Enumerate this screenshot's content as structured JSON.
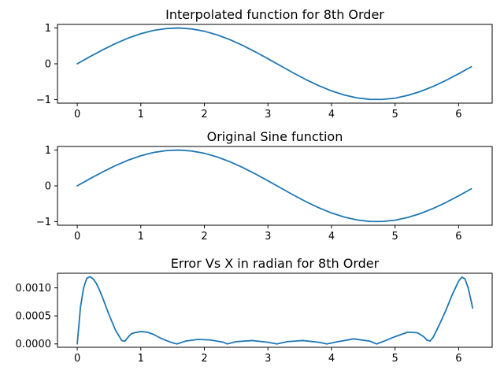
{
  "chart_data": [
    {
      "type": "line",
      "title": "Interpolated function for 8th Order",
      "xlim": [
        -0.311,
        6.528
      ],
      "ylim": [
        -1.1,
        1.1
      ],
      "xticks": [
        0,
        1,
        2,
        3,
        4,
        5,
        6
      ],
      "xtick_labels": [
        "0",
        "1",
        "2",
        "3",
        "4",
        "5",
        "6"
      ],
      "yticks": [
        -1,
        0,
        1
      ],
      "ytick_labels": [
        "−1",
        "0",
        "1"
      ],
      "series": [
        {
          "color": "#1f77b4",
          "x": [
            0,
            0.2,
            0.4,
            0.6,
            0.8,
            1.0,
            1.2,
            1.4,
            1.6,
            1.8,
            2.0,
            2.2,
            2.4,
            2.6,
            2.8,
            3.0,
            3.2,
            3.4,
            3.6,
            3.8,
            4.0,
            4.2,
            4.4,
            4.6,
            4.8,
            5.0,
            5.2,
            5.4,
            5.6,
            5.8,
            6.0,
            6.2
          ],
          "y": [
            0,
            0.199,
            0.389,
            0.565,
            0.717,
            0.841,
            0.932,
            0.985,
            1.0,
            0.974,
            0.909,
            0.808,
            0.675,
            0.516,
            0.335,
            0.141,
            -0.058,
            -0.256,
            -0.443,
            -0.612,
            -0.757,
            -0.872,
            -0.952,
            -0.994,
            -0.996,
            -0.959,
            -0.883,
            -0.773,
            -0.631,
            -0.465,
            -0.279,
            -0.083
          ]
        }
      ]
    },
    {
      "type": "line",
      "title": "Original Sine function",
      "xlim": [
        -0.311,
        6.528
      ],
      "ylim": [
        -1.1,
        1.1
      ],
      "xticks": [
        0,
        1,
        2,
        3,
        4,
        5,
        6
      ],
      "xtick_labels": [
        "0",
        "1",
        "2",
        "3",
        "4",
        "5",
        "6"
      ],
      "yticks": [
        -1,
        0,
        1
      ],
      "ytick_labels": [
        "−1",
        "0",
        "1"
      ],
      "series": [
        {
          "color": "#1f77b4",
          "x": [
            0,
            0.2,
            0.4,
            0.6,
            0.8,
            1.0,
            1.2,
            1.4,
            1.6,
            1.8,
            2.0,
            2.2,
            2.4,
            2.6,
            2.8,
            3.0,
            3.2,
            3.4,
            3.6,
            3.8,
            4.0,
            4.2,
            4.4,
            4.6,
            4.8,
            5.0,
            5.2,
            5.4,
            5.6,
            5.8,
            6.0,
            6.2
          ],
          "y": [
            0,
            0.199,
            0.389,
            0.565,
            0.717,
            0.841,
            0.932,
            0.985,
            1.0,
            0.974,
            0.909,
            0.808,
            0.675,
            0.516,
            0.335,
            0.141,
            -0.058,
            -0.256,
            -0.443,
            -0.612,
            -0.757,
            -0.872,
            -0.952,
            -0.994,
            -0.996,
            -0.959,
            -0.883,
            -0.773,
            -0.631,
            -0.465,
            -0.279,
            -0.083
          ]
        }
      ]
    },
    {
      "type": "line",
      "title": "Error Vs X in radian for 8th Order",
      "xlim": [
        -0.311,
        6.528
      ],
      "ylim": [
        -6e-05,
        0.00126
      ],
      "xticks": [
        0,
        1,
        2,
        3,
        4,
        5,
        6
      ],
      "xtick_labels": [
        "0",
        "1",
        "2",
        "3",
        "4",
        "5",
        "6"
      ],
      "yticks": [
        0,
        0.0005,
        0.001
      ],
      "ytick_labels": [
        "0.0000",
        "0.0005",
        "0.0010"
      ],
      "series": [
        {
          "color": "#1f77b4",
          "x": [
            0,
            0.05,
            0.1,
            0.15,
            0.2,
            0.25,
            0.3,
            0.35,
            0.4,
            0.5,
            0.6,
            0.7,
            0.75,
            0.8,
            0.85,
            0.9,
            1.0,
            1.1,
            1.2,
            1.3,
            1.4,
            1.5,
            1.57,
            1.7,
            1.9,
            2.1,
            2.3,
            2.356,
            2.5,
            2.75,
            3.0,
            3.14,
            3.3,
            3.55,
            3.8,
            3.927,
            4.1,
            4.35,
            4.6,
            4.712,
            4.85,
            5.0,
            5.2,
            5.35,
            5.45,
            5.5,
            5.55,
            5.6,
            5.7,
            5.8,
            5.9,
            6.0,
            6.05,
            6.1,
            6.15,
            6.2,
            6.22
          ],
          "y": [
            0.0,
            0.00065,
            0.001,
            0.00117,
            0.0012,
            0.00116,
            0.00108,
            0.00096,
            0.00082,
            0.00052,
            0.00025,
            6e-05,
            5e-05,
            0.00012,
            0.00018,
            0.0002,
            0.00022,
            0.00021,
            0.00017,
            0.00011,
            6e-05,
            2e-05,
            0.0,
            5e-05,
            8e-05,
            7e-05,
            3e-05,
            0.0,
            4e-05,
            6e-05,
            3e-05,
            0.0,
            4e-05,
            6e-05,
            3e-05,
            0.0,
            4e-05,
            9e-05,
            5e-05,
            0.0,
            6e-05,
            0.00013,
            0.00021,
            0.0002,
            0.00013,
            7e-05,
            5e-05,
            0.00012,
            0.00035,
            0.0006,
            0.00088,
            0.00112,
            0.00119,
            0.00116,
            0.001,
            0.00075,
            0.00064
          ]
        }
      ]
    }
  ]
}
